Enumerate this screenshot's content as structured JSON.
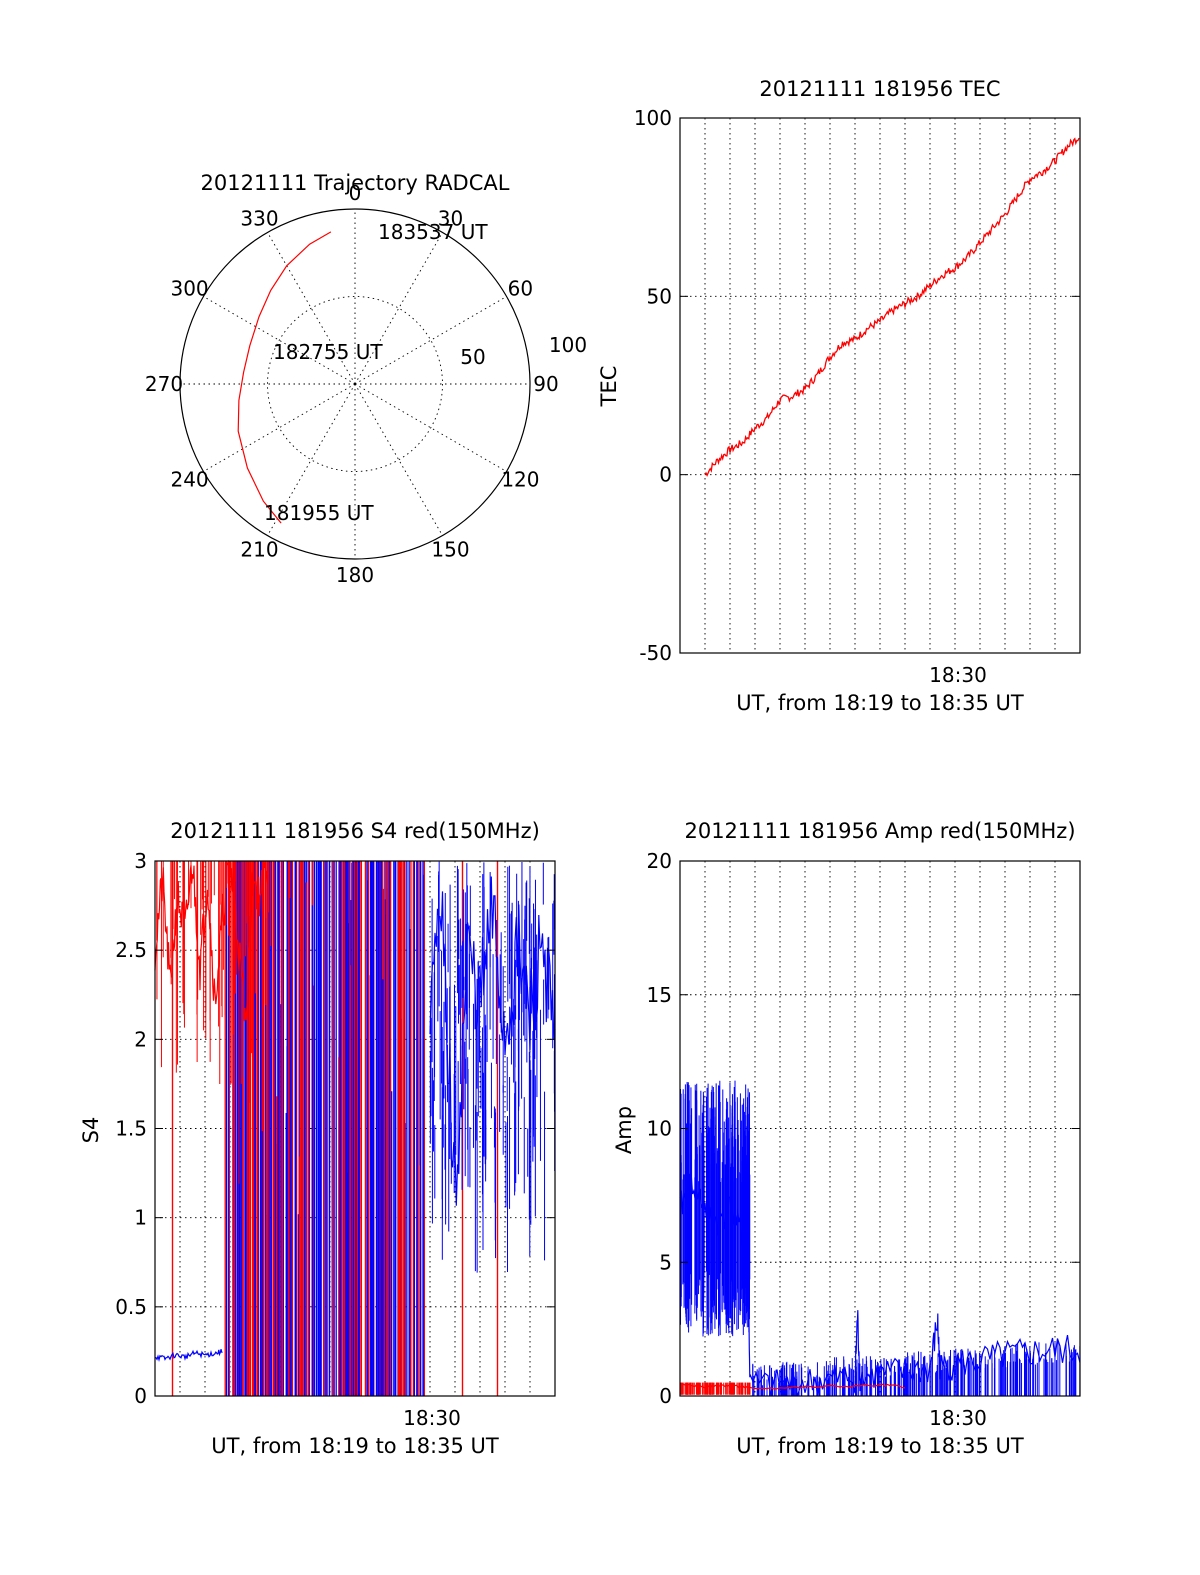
{
  "colors": {
    "red": "#ff0000",
    "blue": "#0000ff",
    "axis": "#000000"
  },
  "chart_data": [
    {
      "id": "trajectory",
      "type": "polar",
      "title": "20121111 Trajectory RADCAL",
      "angle_labels": [
        "0",
        "30",
        "60",
        "90",
        "120",
        "150",
        "180",
        "210",
        "240",
        "270",
        "300",
        "330"
      ],
      "radial_labels": [
        "50",
        "100"
      ],
      "rlim": [
        0,
        100
      ],
      "grid": true,
      "track": {
        "color": "red",
        "points": [
          {
            "az": 208,
            "r": 90
          },
          {
            "az": 218,
            "r": 85
          },
          {
            "az": 232,
            "r": 78
          },
          {
            "az": 248,
            "r": 72
          },
          {
            "az": 262,
            "r": 67
          },
          {
            "az": 276,
            "r": 64
          },
          {
            "az": 290,
            "r": 64
          },
          {
            "az": 305,
            "r": 67
          },
          {
            "az": 318,
            "r": 72
          },
          {
            "az": 330,
            "r": 78
          },
          {
            "az": 342,
            "r": 84
          },
          {
            "az": 351,
            "r": 88
          }
        ]
      },
      "annotations": [
        {
          "text": "183537 UT"
        },
        {
          "text": "182755 UT"
        },
        {
          "text": "181955 UT"
        }
      ]
    },
    {
      "id": "tec",
      "type": "line",
      "title": "20121111 181956 TEC",
      "ylabel": "TEC",
      "xlabel": "UT, from 18:19 to 18:35 UT",
      "ylim": [
        -50,
        100
      ],
      "yticks": [
        "-50",
        "0",
        "50",
        "100"
      ],
      "xlim": [
        0,
        16
      ],
      "xtick_label": "18:30",
      "xtick_value": 10.0,
      "grid": true,
      "series": [
        {
          "color": "red",
          "x": [
            0,
            0.5,
            1,
            1.5,
            2,
            2.5,
            3,
            3.5,
            4,
            4.5,
            5,
            5.5,
            6,
            6.5,
            7,
            7.5,
            8,
            8.5,
            9,
            9.5,
            10,
            10.5,
            11,
            11.5,
            12,
            12.5,
            13,
            13.5,
            14,
            14.5,
            15
          ],
          "y": [
            0,
            4,
            7,
            9,
            13,
            16,
            21,
            22,
            24,
            28,
            33,
            37,
            38,
            41,
            43,
            46,
            48,
            50,
            53,
            56,
            58,
            61,
            65,
            69,
            73,
            78,
            83,
            85,
            88,
            92,
            95
          ]
        }
      ]
    },
    {
      "id": "s4",
      "type": "line",
      "title": "20121111 181956 S4 red(150MHz)",
      "ylabel": "S4",
      "xlabel": "UT, from 18:19 to 18:35 UT",
      "ylim": [
        0,
        3
      ],
      "yticks": [
        "0",
        "0.5",
        "1",
        "1.5",
        "2",
        "2.5",
        "3"
      ],
      "xlim": [
        0,
        16
      ],
      "xtick_label": "18:30",
      "xtick_value": 10.0,
      "grid": true,
      "series": [
        {
          "color": "red",
          "x": [
            0,
            0.3,
            0.6,
            0.9,
            1.2,
            1.5,
            1.8,
            2.1,
            2.4,
            2.7,
            3.0,
            3.3,
            3.6,
            3.9,
            4.2,
            4.5
          ],
          "y": [
            2.5,
            2.9,
            2.3,
            2.8,
            2.6,
            3.0,
            2.4,
            2.9,
            2.2,
            2.7,
            3.0,
            2.6,
            2.1,
            2.9,
            2.8,
            3.0
          ]
        },
        {
          "color": "blue",
          "x": [
            0,
            0.4,
            0.8,
            1.2,
            1.6,
            2.0,
            2.4,
            2.7
          ],
          "y": [
            0.22,
            0.21,
            0.23,
            0.22,
            0.24,
            0.23,
            0.24,
            0.25
          ]
        },
        {
          "color": "blue",
          "x": [
            11.0,
            11.5,
            12.0,
            12.5,
            13.0,
            13.5,
            14.0,
            14.5,
            15.0,
            15.5,
            16.0
          ],
          "y": [
            2.3,
            2.6,
            1.1,
            2.5,
            2.2,
            2.7,
            2.0,
            2.5,
            2.1,
            2.6,
            1.9
          ]
        }
      ]
    },
    {
      "id": "amp",
      "type": "line",
      "title": "20121111 181956 Amp red(150MHz)",
      "ylabel": "Amp",
      "xlabel": "UT, from 18:19 to 18:35 UT",
      "ylim": [
        0,
        20
      ],
      "yticks": [
        "0",
        "5",
        "10",
        "15",
        "20"
      ],
      "xlim": [
        0,
        16
      ],
      "xtick_label": "18:30",
      "xtick_value": 10.0,
      "grid": true,
      "series": [
        {
          "color": "blue",
          "x": [
            0,
            0.5,
            1.0,
            1.5,
            2.0,
            2.5,
            2.7,
            2.8,
            4,
            5,
            6,
            7,
            7.1,
            7.2,
            8,
            9,
            10,
            10.3,
            10.4,
            11,
            12,
            13,
            14,
            15,
            16
          ],
          "y": [
            7,
            8,
            7,
            6.5,
            7,
            6,
            6,
            0.4,
            0.4,
            0.5,
            0.6,
            0.7,
            3.0,
            0.7,
            0.8,
            0.9,
            1.0,
            2.8,
            1.0,
            1.2,
            1.3,
            1.5,
            1.6,
            1.7,
            1.7
          ]
        },
        {
          "color": "red",
          "x": [
            0,
            0.5,
            1.0,
            1.5,
            2.0,
            2.5,
            2.7,
            4,
            6,
            8,
            9
          ],
          "y": [
            0.4,
            0.4,
            0.35,
            0.4,
            0.4,
            0.35,
            0.3,
            0.3,
            0.35,
            0.4,
            0.35
          ]
        }
      ]
    }
  ]
}
